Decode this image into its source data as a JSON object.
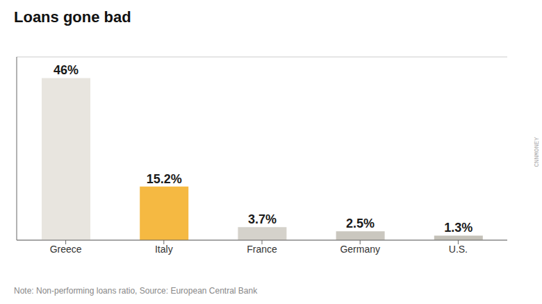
{
  "chart_data": {
    "type": "bar",
    "title": "Loans gone bad",
    "categories": [
      "Greece",
      "Italy",
      "France",
      "Germany",
      "U.S."
    ],
    "values": [
      46.0,
      15.2,
      3.7,
      2.5,
      1.3
    ],
    "value_labels": [
      "46%",
      "15.2%",
      "3.7%",
      "2.5%",
      "1.3%"
    ],
    "colors": [
      "#e8e5df",
      "#f5b942",
      "#d5d2cb",
      "#cac7bf",
      "#c4c1b8"
    ],
    "ylim": [
      0,
      52
    ],
    "yticks": [
      10,
      20,
      30,
      40,
      50
    ],
    "grid": true,
    "data_labels": true,
    "tick_labels": "x",
    "annotations": [
      "Note: Non-performing loans ratio, Source: European Central Bank",
      "CNNMONEY"
    ]
  }
}
